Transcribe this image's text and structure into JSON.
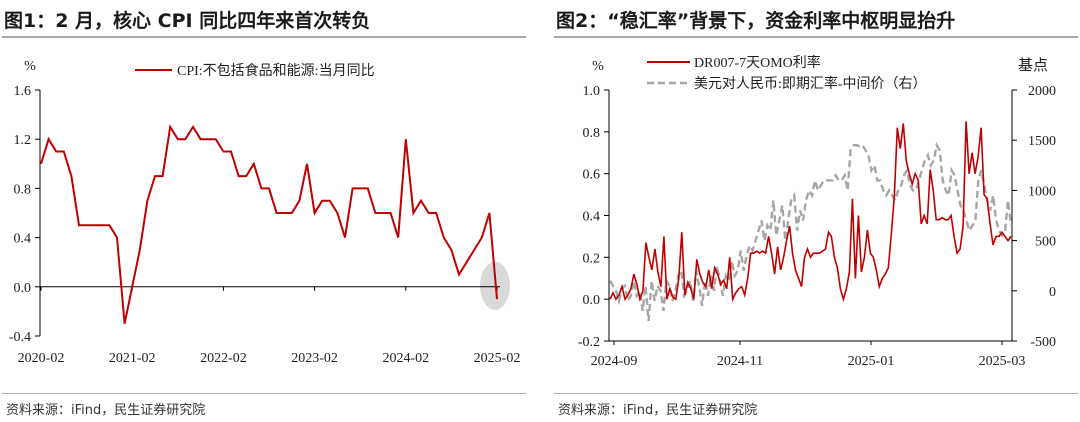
{
  "panels": [
    {
      "title": "图1：2 月，核心 CPI 同比四年来首次转负",
      "source": "资料来源：iFind，民生证券研究院",
      "colors": {
        "line": "#c00000",
        "highlight": "#d9d9d9"
      }
    },
    {
      "title": "图2：“稳汇率”背景下，资金利率中枢明显抬升",
      "source": "资料来源：iFind，民生证券研究院",
      "colors": {
        "line": "#c00000",
        "dashed": "#a6a6a6"
      }
    }
  ],
  "chart_data": [
    {
      "type": "line",
      "ylabel": "%",
      "ylim": [
        -0.4,
        1.6
      ],
      "yticks": [
        "1.6",
        "1.2",
        "0.8",
        "0.4",
        "0.0",
        "-0.4"
      ],
      "xticks": [
        "2020-02",
        "2021-02",
        "2022-02",
        "2023-02",
        "2024-02",
        "2025-02"
      ],
      "grid": false,
      "legend_position": "top",
      "highlight": "last point circled",
      "series": [
        {
          "name": "CPI:不包括食品和能源:当月同比",
          "x": [
            "2020-02",
            "2020-03",
            "2020-04",
            "2020-05",
            "2020-06",
            "2020-07",
            "2020-08",
            "2020-09",
            "2020-10",
            "2020-11",
            "2020-12",
            "2021-01",
            "2021-02",
            "2021-03",
            "2021-04",
            "2021-05",
            "2021-06",
            "2021-07",
            "2021-08",
            "2021-09",
            "2021-10",
            "2021-11",
            "2021-12",
            "2022-01",
            "2022-02",
            "2022-03",
            "2022-04",
            "2022-05",
            "2022-06",
            "2022-07",
            "2022-08",
            "2022-09",
            "2022-10",
            "2022-11",
            "2022-12",
            "2023-01",
            "2023-02",
            "2023-03",
            "2023-04",
            "2023-05",
            "2023-06",
            "2023-07",
            "2023-08",
            "2023-09",
            "2023-10",
            "2023-11",
            "2023-12",
            "2024-01",
            "2024-02",
            "2024-03",
            "2024-04",
            "2024-05",
            "2024-06",
            "2024-07",
            "2024-08",
            "2024-09",
            "2024-10",
            "2024-11",
            "2024-12",
            "2025-01",
            "2025-02"
          ],
          "values": [
            1.0,
            1.2,
            1.1,
            1.1,
            0.9,
            0.5,
            0.5,
            0.5,
            0.5,
            0.5,
            0.4,
            -0.3,
            0.0,
            0.3,
            0.7,
            0.9,
            0.9,
            1.3,
            1.2,
            1.2,
            1.3,
            1.2,
            1.2,
            1.2,
            1.1,
            1.1,
            0.9,
            0.9,
            1.0,
            0.8,
            0.8,
            0.6,
            0.6,
            0.6,
            0.7,
            1.0,
            0.6,
            0.7,
            0.7,
            0.6,
            0.4,
            0.8,
            0.8,
            0.8,
            0.6,
            0.6,
            0.6,
            0.4,
            1.2,
            0.6,
            0.7,
            0.6,
            0.6,
            0.4,
            0.3,
            0.1,
            0.2,
            0.3,
            0.4,
            0.6,
            -0.1
          ]
        }
      ]
    },
    {
      "type": "line",
      "ylabel_left": "%",
      "ylabel_right": "基点",
      "ylim_left": [
        -0.2,
        1.0
      ],
      "ylim_right": [
        -500,
        2000
      ],
      "yticks_left": [
        "1.0",
        "0.8",
        "0.6",
        "0.4",
        "0.2",
        "0.0",
        "-0.2"
      ],
      "yticks_right": [
        "2000",
        "1500",
        "1000",
        "500",
        "0",
        "-500"
      ],
      "xticks": [
        "2024-09",
        "2024-11",
        "2025-01",
        "2025-03"
      ],
      "grid": false,
      "legend_position": "top",
      "series": [
        {
          "name": "DR007-7天OMO利率",
          "axis": "left",
          "style": "solid",
          "values": [
            0.0,
            0.03,
            0.0,
            0.02,
            0.06,
            0.0,
            0.02,
            0.05,
            0.12,
            0.07,
            0.0,
            0.04,
            0.27,
            0.2,
            0.14,
            0.24,
            0.13,
            0.06,
            0.3,
            0.0,
            0.05,
            0.01,
            0.0,
            0.1,
            0.32,
            0.02,
            0.08,
            0.05,
            0.0,
            0.19,
            0.12,
            0.08,
            0.06,
            0.14,
            0.05,
            0.15,
            0.12,
            0.07,
            0.09,
            0.05,
            0.2,
            0.0,
            0.03,
            0.05,
            0.06,
            0.02,
            0.1,
            0.22,
            0.22,
            0.23,
            0.22,
            0.23,
            0.22,
            0.3,
            0.22,
            0.12,
            0.25,
            0.14,
            0.2,
            0.28,
            0.35,
            0.22,
            0.14,
            0.1,
            0.06,
            0.2,
            0.24,
            0.2,
            0.22,
            0.22,
            0.22,
            0.23,
            0.24,
            0.32,
            0.3,
            0.2,
            0.15,
            0.05,
            0.0,
            0.05,
            0.13,
            0.48,
            0.1,
            0.4,
            0.13,
            0.2,
            0.33,
            0.22,
            0.2,
            0.14,
            0.06,
            0.1,
            0.12,
            0.15,
            0.31,
            0.49,
            0.82,
            0.72,
            0.84,
            0.66,
            0.6,
            0.55,
            0.6,
            0.57,
            0.36,
            0.4,
            0.36,
            0.62,
            0.52,
            0.38,
            0.38,
            0.39,
            0.38,
            0.38,
            0.4,
            0.3,
            0.22,
            0.24,
            0.35,
            0.85,
            0.6,
            0.7,
            0.6,
            0.68,
            0.82,
            0.5,
            0.48,
            0.36,
            0.26,
            0.3,
            0.3,
            0.32,
            0.3,
            0.28,
            0.3
          ]
        },
        {
          "name": "美元对人民币:即期汇率-中间价（右）",
          "axis": "right",
          "style": "dashed",
          "values": [
            100,
            50,
            0,
            -100,
            20,
            50,
            -100,
            -50,
            100,
            -50,
            0,
            -200,
            50,
            -300,
            100,
            -100,
            50,
            0,
            -200,
            100,
            50,
            -100,
            0,
            150,
            200,
            -50,
            0,
            100,
            -100,
            200,
            50,
            -150,
            100,
            -50,
            150,
            0,
            250,
            100,
            -50,
            150,
            100,
            300,
            150,
            200,
            400,
            200,
            350,
            450,
            400,
            500,
            600,
            700,
            500,
            650,
            600,
            900,
            550,
            700,
            850,
            500,
            700,
            900,
            950,
            600,
            800,
            700,
            900,
            1000,
            950,
            1100,
            1000,
            1050,
            1100,
            1100,
            1100,
            1100,
            1150,
            1100,
            1100,
            1150,
            1000,
            1400,
            1450,
            1450,
            1440,
            1450,
            1400,
            1350,
            1200,
            1250,
            1100,
            1100,
            1000,
            950,
            1000,
            950,
            900,
            1000,
            1050,
            1150,
            1200,
            1050,
            1000,
            1000,
            1100,
            1200,
            1300,
            1350,
            1250,
            1300,
            1450,
            1400,
            1100,
            1000,
            950,
            1200,
            1150,
            1000,
            850,
            800,
            700,
            600,
            650,
            700,
            1100,
            1200,
            1050,
            900,
            800,
            950,
            700,
            600,
            550,
            600,
            900,
            650
          ]
        }
      ]
    }
  ]
}
